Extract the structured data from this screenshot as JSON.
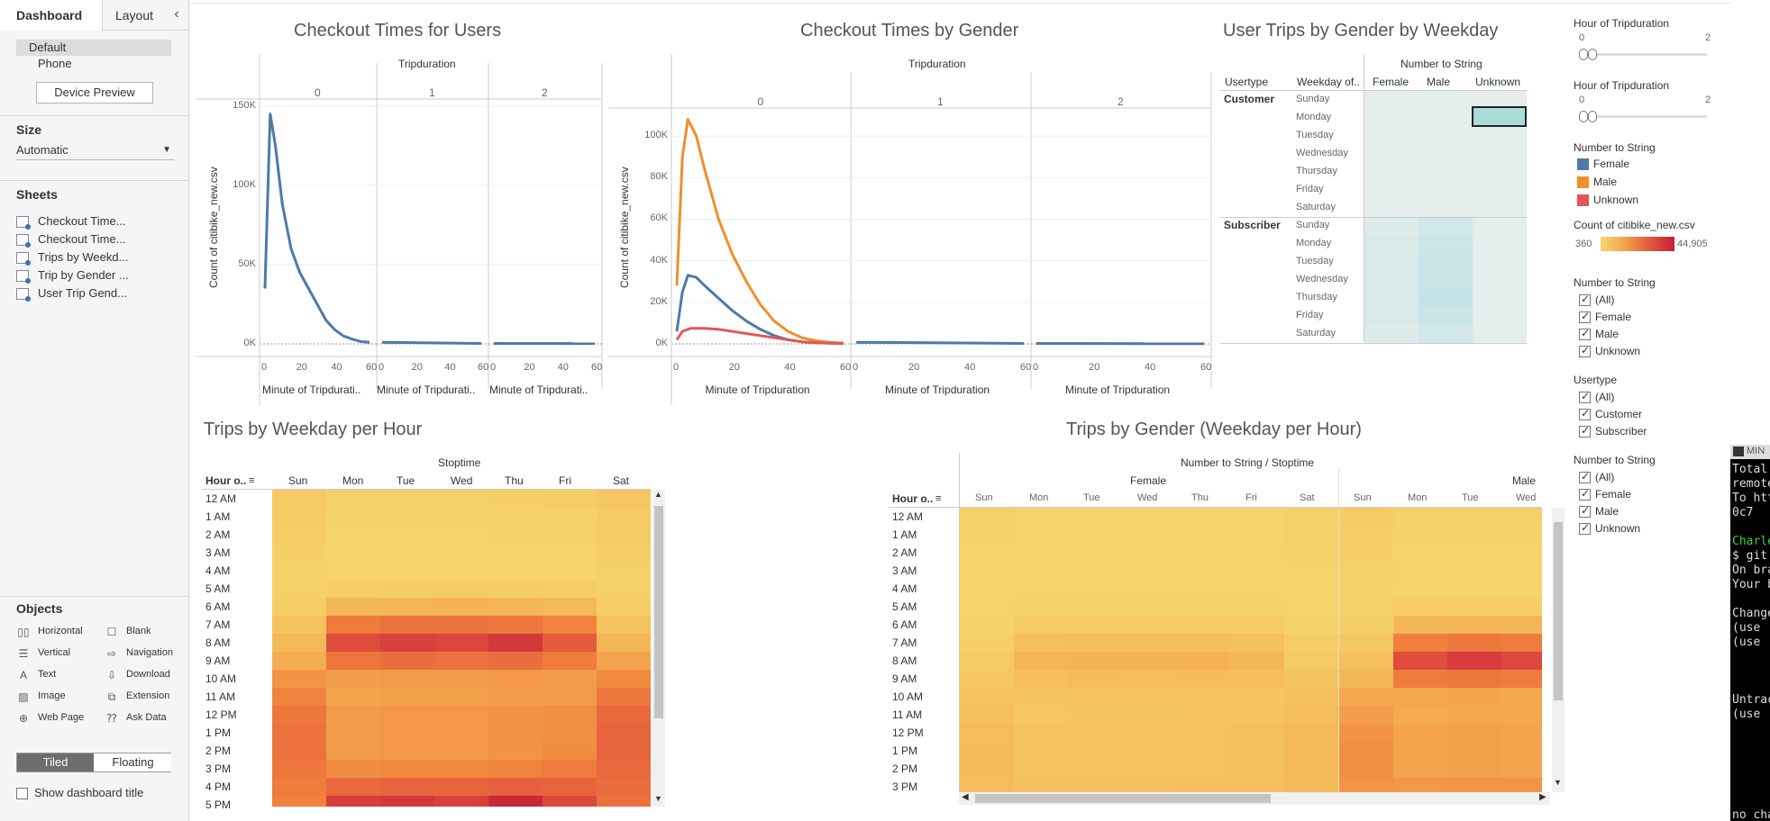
{
  "tabs": {
    "dashboard": "Dashboard",
    "layout": "Layout",
    "collapse_icon": "chevron-left-icon"
  },
  "device": {
    "default": "Default",
    "phone": "Phone",
    "preview_button": "Device Preview"
  },
  "size": {
    "title": "Size",
    "value": "Automatic"
  },
  "sheets": {
    "title": "Sheets",
    "items": [
      "Checkout Time...",
      "Checkout Time...",
      "Trips by Weekd...",
      "Trip by Gender ...",
      "User Trip Gend..."
    ]
  },
  "objects": {
    "title": "Objects",
    "items": [
      {
        "label": "Horizontal",
        "icon": "horizontal-container-icon"
      },
      {
        "label": "Blank",
        "icon": "blank-icon"
      },
      {
        "label": "Vertical",
        "icon": "vertical-container-icon"
      },
      {
        "label": "Navigation",
        "icon": "navigation-icon"
      },
      {
        "label": "Text",
        "icon": "text-icon"
      },
      {
        "label": "Download",
        "icon": "download-icon"
      },
      {
        "label": "Image",
        "icon": "image-icon"
      },
      {
        "label": "Extension",
        "icon": "extension-icon"
      },
      {
        "label": "Web Page",
        "icon": "web-page-icon"
      },
      {
        "label": "Ask Data",
        "icon": "ask-data-icon"
      }
    ],
    "tiled": "Tiled",
    "floating": "Floating",
    "show_title": "Show dashboard title"
  },
  "charts": {
    "c1": {
      "title": "Checkout Times for Users",
      "header": "Tripduration",
      "panels": [
        "0",
        "1",
        "2"
      ],
      "ylabel": "Count of citibike_new.csv",
      "xlabel": "Minute of Tripdurati..",
      "yticks": [
        "150K",
        "100K",
        "50K",
        "0K"
      ],
      "xticks": [
        "0",
        "20",
        "40",
        "60"
      ]
    },
    "c2": {
      "title": "Checkout Times by Gender",
      "header": "Tripduration",
      "panels": [
        "0",
        "1",
        "2"
      ],
      "ylabel": "Count of citibike_new.csv",
      "xlabel": "Minute of Tripduration",
      "yticks": [
        "100K",
        "80K",
        "60K",
        "40K",
        "20K",
        "0K"
      ],
      "xticks": [
        "0",
        "20",
        "40",
        "60"
      ]
    },
    "c3": {
      "title": "User Trips by Gender by Weekday",
      "header": "Number to String",
      "col_usertype": "Usertype",
      "col_weekday": "Weekday of..",
      "cols": [
        "Female",
        "Male",
        "Unknown"
      ],
      "groups": [
        "Customer",
        "Subscriber"
      ],
      "days": [
        "Sunday",
        "Monday",
        "Tuesday",
        "Wednesday",
        "Thursday",
        "Friday",
        "Saturday"
      ]
    },
    "c4": {
      "title": "Trips by Weekday per Hour",
      "header": "Stoptime",
      "row_header": "Hour o..",
      "days": [
        "Sun",
        "Mon",
        "Tue",
        "Wed",
        "Thu",
        "Fri",
        "Sat"
      ],
      "hours": [
        "12 AM",
        "1 AM",
        "2 AM",
        "3 AM",
        "4 AM",
        "5 AM",
        "6 AM",
        "7 AM",
        "8 AM",
        "9 AM",
        "10 AM",
        "11 AM",
        "12 PM",
        "1 PM",
        "2 PM",
        "3 PM",
        "4 PM",
        "5 PM"
      ]
    },
    "c5": {
      "title": "Trips by Gender (Weekday per Hour)",
      "header": "Number to String / Stoptime",
      "row_header": "Hour o..",
      "groups": [
        "Female",
        "Male"
      ],
      "days": [
        "Sun",
        "Mon",
        "Tue",
        "Wed",
        "Thu",
        "Fri",
        "Sat",
        "Sun",
        "Mon",
        "Tue",
        "Wed"
      ],
      "hours": [
        "12 AM",
        "1 AM",
        "2 AM",
        "3 AM",
        "4 AM",
        "5 AM",
        "6 AM",
        "7 AM",
        "8 AM",
        "9 AM",
        "10 AM",
        "11 AM",
        "12 PM",
        "1 PM",
        "2 PM",
        "3 PM"
      ]
    }
  },
  "chart_data": [
    {
      "type": "line",
      "title": "Checkout Times for Users",
      "xlabel": "Minute of Tripduration",
      "ylabel": "Count of citibike_new.csv",
      "ylim": [
        0,
        150000
      ],
      "facets": [
        "0",
        "1",
        "2"
      ],
      "series": [
        {
          "name": "",
          "facet": "0",
          "x": [
            0,
            3,
            6,
            10,
            15,
            20,
            25,
            30,
            35,
            40,
            45,
            50,
            55,
            60
          ],
          "values": [
            35000,
            145000,
            125000,
            88000,
            60000,
            45000,
            35000,
            25000,
            15000,
            9000,
            5000,
            3000,
            1500,
            1000
          ]
        },
        {
          "name": "",
          "facet": "1",
          "x": [
            0,
            60
          ],
          "values": [
            1000,
            300
          ]
        },
        {
          "name": "",
          "facet": "2",
          "x": [
            0,
            60
          ],
          "values": [
            300,
            200
          ]
        }
      ]
    },
    {
      "type": "line",
      "title": "Checkout Times by Gender",
      "xlabel": "Minute of Tripduration",
      "ylabel": "Count of citibike_new.csv",
      "ylim": [
        0,
        110000
      ],
      "facets": [
        "0",
        "1",
        "2"
      ],
      "series": [
        {
          "name": "Male",
          "facet": "0",
          "x": [
            0,
            2,
            4,
            7,
            10,
            15,
            20,
            25,
            30,
            35,
            40,
            45,
            50,
            55,
            60
          ],
          "values": [
            28000,
            90000,
            108000,
            100000,
            84000,
            60000,
            43000,
            30000,
            19000,
            11000,
            6000,
            3000,
            1500,
            800,
            400
          ]
        },
        {
          "name": "Female",
          "facet": "0",
          "x": [
            0,
            2,
            4,
            7,
            10,
            15,
            20,
            25,
            30,
            35,
            40,
            45,
            50,
            55,
            60
          ],
          "values": [
            6000,
            25000,
            33000,
            32000,
            28000,
            22000,
            16000,
            11000,
            7000,
            4000,
            2000,
            1000,
            500,
            300,
            200
          ]
        },
        {
          "name": "Unknown",
          "facet": "0",
          "x": [
            0,
            2,
            5,
            10,
            15,
            20,
            25,
            30,
            35,
            40,
            45,
            50,
            55,
            60
          ],
          "values": [
            2000,
            6000,
            7500,
            7500,
            7000,
            6000,
            5000,
            4000,
            3000,
            2000,
            1000,
            600,
            300,
            100
          ]
        },
        {
          "name": "Female",
          "facet": "1",
          "x": [
            0,
            60
          ],
          "values": [
            800,
            200
          ]
        },
        {
          "name": "Female",
          "facet": "2",
          "x": [
            0,
            60
          ],
          "values": [
            200,
            100
          ]
        }
      ]
    },
    {
      "type": "heatmap",
      "title": "User Trips by Gender by Weekday",
      "color_range": [
        360,
        44905
      ],
      "rows": [
        "Customer/Sunday",
        "Customer/Monday",
        "Customer/Tuesday",
        "Customer/Wednesday",
        "Customer/Thursday",
        "Customer/Friday",
        "Customer/Saturday",
        "Subscriber/Sunday",
        "Subscriber/Monday",
        "Subscriber/Tuesday",
        "Subscriber/Wednesday",
        "Subscriber/Thursday",
        "Subscriber/Friday",
        "Subscriber/Saturday"
      ],
      "columns": [
        "Female",
        "Male",
        "Unknown"
      ],
      "values": [
        [
          0.02,
          0.02,
          0.02
        ],
        [
          0.02,
          0.02,
          0.25
        ],
        [
          0.02,
          0.02,
          0.02
        ],
        [
          0.02,
          0.02,
          0.02
        ],
        [
          0.02,
          0.02,
          0.02
        ],
        [
          0.02,
          0.02,
          0.02
        ],
        [
          0.02,
          0.02,
          0.05
        ],
        [
          0.15,
          0.35,
          0.02
        ],
        [
          0.2,
          0.45,
          0.02
        ],
        [
          0.2,
          0.5,
          0.02
        ],
        [
          0.2,
          0.5,
          0.02
        ],
        [
          0.2,
          0.55,
          0.02
        ],
        [
          0.2,
          0.5,
          0.02
        ],
        [
          0.15,
          0.35,
          0.02
        ]
      ]
    },
    {
      "type": "heatmap",
      "title": "Trips by Weekday per Hour",
      "color_range": [
        360,
        44905
      ],
      "columns": [
        "Sun",
        "Mon",
        "Tue",
        "Wed",
        "Thu",
        "Fri",
        "Sat"
      ],
      "rows": [
        "12 AM",
        "1 AM",
        "2 AM",
        "3 AM",
        "4 AM",
        "5 AM",
        "6 AM",
        "7 AM",
        "8 AM",
        "9 AM",
        "10 AM",
        "11 AM",
        "12 PM",
        "1 PM",
        "2 PM",
        "3 PM",
        "4 PM",
        "5 PM"
      ],
      "values": [
        [
          0.12,
          0.05,
          0.05,
          0.05,
          0.06,
          0.07,
          0.14
        ],
        [
          0.1,
          0.03,
          0.03,
          0.03,
          0.04,
          0.05,
          0.12
        ],
        [
          0.08,
          0.02,
          0.02,
          0.02,
          0.03,
          0.03,
          0.1
        ],
        [
          0.06,
          0.02,
          0.02,
          0.02,
          0.02,
          0.02,
          0.07
        ],
        [
          0.04,
          0.02,
          0.02,
          0.02,
          0.02,
          0.02,
          0.05
        ],
        [
          0.04,
          0.08,
          0.09,
          0.09,
          0.09,
          0.08,
          0.04
        ],
        [
          0.08,
          0.3,
          0.32,
          0.33,
          0.32,
          0.28,
          0.08
        ],
        [
          0.18,
          0.62,
          0.66,
          0.66,
          0.64,
          0.58,
          0.18
        ],
        [
          0.28,
          0.82,
          0.86,
          0.85,
          0.9,
          0.76,
          0.3
        ],
        [
          0.38,
          0.65,
          0.68,
          0.66,
          0.68,
          0.62,
          0.42
        ],
        [
          0.5,
          0.45,
          0.46,
          0.46,
          0.48,
          0.46,
          0.55
        ],
        [
          0.58,
          0.42,
          0.44,
          0.44,
          0.46,
          0.46,
          0.64
        ],
        [
          0.64,
          0.46,
          0.48,
          0.48,
          0.5,
          0.52,
          0.7
        ],
        [
          0.66,
          0.46,
          0.48,
          0.48,
          0.5,
          0.52,
          0.72
        ],
        [
          0.66,
          0.46,
          0.48,
          0.48,
          0.5,
          0.54,
          0.72
        ],
        [
          0.64,
          0.54,
          0.56,
          0.56,
          0.58,
          0.62,
          0.7
        ],
        [
          0.62,
          0.7,
          0.72,
          0.72,
          0.74,
          0.72,
          0.68
        ],
        [
          0.6,
          0.88,
          0.9,
          0.86,
          0.96,
          0.84,
          0.66
        ]
      ]
    },
    {
      "type": "heatmap",
      "title": "Trips by Gender (Weekday per Hour)",
      "color_range": [
        360,
        44905
      ],
      "columns": [
        "Female/Sun",
        "Female/Mon",
        "Female/Tue",
        "Female/Wed",
        "Female/Thu",
        "Female/Fri",
        "Female/Sat",
        "Male/Sun",
        "Male/Mon",
        "Male/Tue",
        "Male/Wed"
      ],
      "rows": [
        "12 AM",
        "1 AM",
        "2 AM",
        "3 AM",
        "4 AM",
        "5 AM",
        "6 AM",
        "7 AM",
        "8 AM",
        "9 AM",
        "10 AM",
        "11 AM",
        "12 PM",
        "1 PM",
        "2 PM",
        "3 PM"
      ],
      "values": [
        [
          0.04,
          0.02,
          0.02,
          0.02,
          0.02,
          0.02,
          0.05,
          0.1,
          0.04,
          0.04,
          0.04
        ],
        [
          0.03,
          0.01,
          0.01,
          0.01,
          0.01,
          0.02,
          0.04,
          0.08,
          0.03,
          0.03,
          0.03
        ],
        [
          0.02,
          0.01,
          0.01,
          0.01,
          0.01,
          0.01,
          0.03,
          0.06,
          0.02,
          0.02,
          0.02
        ],
        [
          0.02,
          0.01,
          0.01,
          0.01,
          0.01,
          0.01,
          0.02,
          0.05,
          0.02,
          0.02,
          0.02
        ],
        [
          0.01,
          0.01,
          0.01,
          0.01,
          0.01,
          0.01,
          0.02,
          0.03,
          0.02,
          0.02,
          0.02
        ],
        [
          0.01,
          0.03,
          0.03,
          0.03,
          0.03,
          0.03,
          0.02,
          0.03,
          0.08,
          0.08,
          0.08
        ],
        [
          0.03,
          0.1,
          0.11,
          0.11,
          0.11,
          0.1,
          0.03,
          0.06,
          0.3,
          0.32,
          0.32
        ],
        [
          0.06,
          0.22,
          0.24,
          0.24,
          0.23,
          0.21,
          0.07,
          0.14,
          0.6,
          0.64,
          0.62
        ],
        [
          0.1,
          0.32,
          0.34,
          0.34,
          0.35,
          0.3,
          0.11,
          0.22,
          0.82,
          0.88,
          0.84
        ],
        [
          0.14,
          0.24,
          0.26,
          0.25,
          0.26,
          0.24,
          0.16,
          0.3,
          0.62,
          0.64,
          0.62
        ],
        [
          0.19,
          0.16,
          0.17,
          0.17,
          0.18,
          0.17,
          0.22,
          0.4,
          0.4,
          0.42,
          0.4
        ],
        [
          0.22,
          0.15,
          0.16,
          0.16,
          0.17,
          0.17,
          0.25,
          0.45,
          0.38,
          0.4,
          0.4
        ],
        [
          0.25,
          0.17,
          0.18,
          0.18,
          0.19,
          0.2,
          0.28,
          0.5,
          0.42,
          0.44,
          0.42
        ],
        [
          0.26,
          0.17,
          0.18,
          0.18,
          0.19,
          0.2,
          0.29,
          0.52,
          0.42,
          0.44,
          0.42
        ],
        [
          0.26,
          0.17,
          0.18,
          0.18,
          0.19,
          0.21,
          0.29,
          0.52,
          0.42,
          0.44,
          0.42
        ],
        [
          0.25,
          0.2,
          0.21,
          0.21,
          0.22,
          0.24,
          0.28,
          0.5,
          0.48,
          0.5,
          0.5
        ]
      ]
    }
  ],
  "legend": {
    "slider1": {
      "title": "Hour of Tripduration",
      "min": "0",
      "max": "2"
    },
    "slider2": {
      "title": "Hour of Tripduration",
      "min": "0",
      "max": "2"
    },
    "color": {
      "title": "Number to String",
      "items": [
        {
          "label": "Female",
          "color": "#4e79a7"
        },
        {
          "label": "Male",
          "color": "#f28e2b"
        },
        {
          "label": "Unknown",
          "color": "#e15759"
        }
      ]
    },
    "count": {
      "title": "Count of citibike_new.csv",
      "min": "360",
      "max": "44,905"
    },
    "filter1": {
      "title": "Number to String",
      "items": [
        "(All)",
        "Female",
        "Male",
        "Unknown"
      ]
    },
    "filter2": {
      "title": "Usertype",
      "items": [
        "(All)",
        "Customer",
        "Subscriber"
      ]
    },
    "filter3": {
      "title": "Number to String",
      "items": [
        "(All)",
        "Female",
        "Male",
        "Unknown"
      ]
    }
  },
  "terminal": {
    "title": "MIN",
    "lines": [
      "Total",
      "remote",
      "To htt",
      "  0c7",
      "",
      "Charle",
      "$ git",
      "On bra",
      "Your b",
      "",
      "Change",
      "  (use",
      "  (use",
      "",
      "",
      "",
      "Untrac",
      "  (use",
      "",
      "",
      "",
      "",
      "",
      "",
      "no cha"
    ]
  }
}
